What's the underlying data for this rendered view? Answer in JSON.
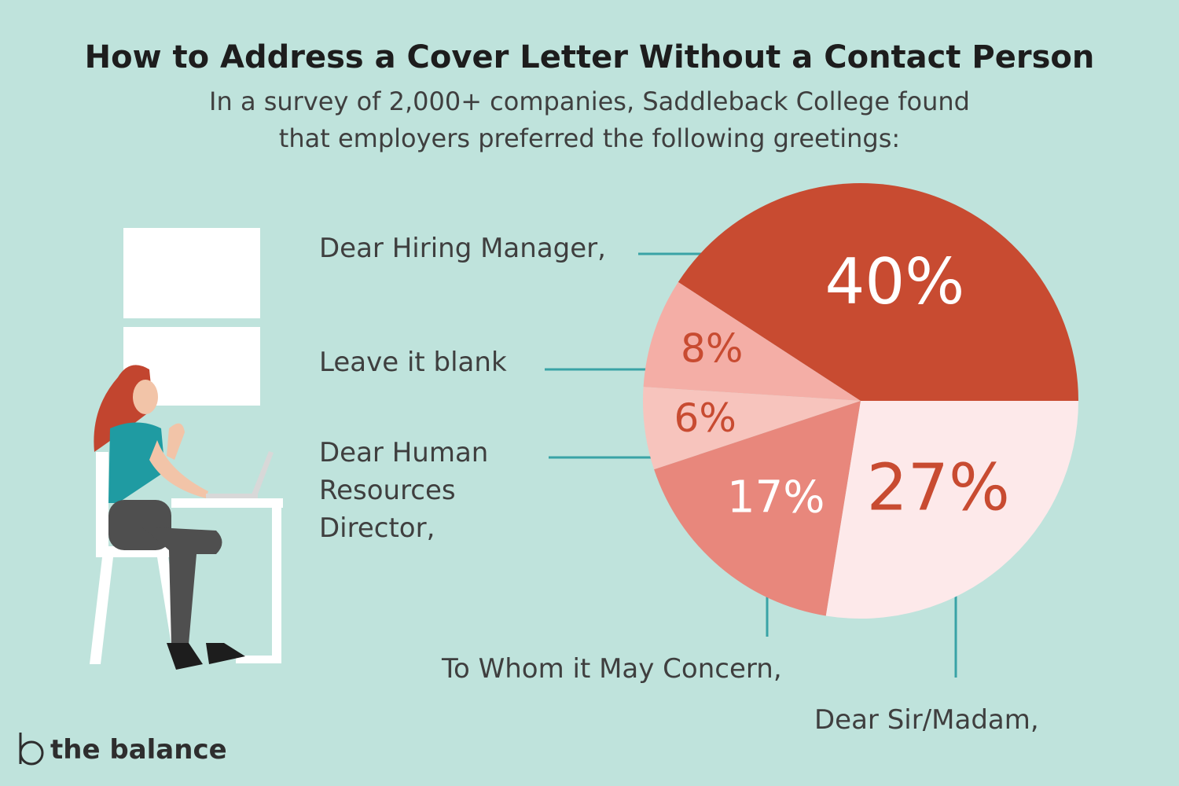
{
  "chart_data": {
    "type": "pie",
    "title": "How to Address a Cover Letter Without a Contact Person",
    "subtitle": "In a survey of 2,000+ companies, Saddleback College found that employers preferred the following greetings:",
    "categories": [
      "Dear Hiring Manager,",
      "Leave it blank",
      "Dear Human Resources Director,",
      "To Whom it May Concern,",
      "Dear Sir/Madam,"
    ],
    "values": [
      40,
      8,
      6,
      17,
      27
    ],
    "value_labels": [
      "40%",
      "8%",
      "6%",
      "17%",
      "27%"
    ],
    "colors": [
      "#c84b31",
      "#f4aea6",
      "#f7c4bd",
      "#e8877c",
      "#fde9ea"
    ]
  },
  "brand": "the balance"
}
